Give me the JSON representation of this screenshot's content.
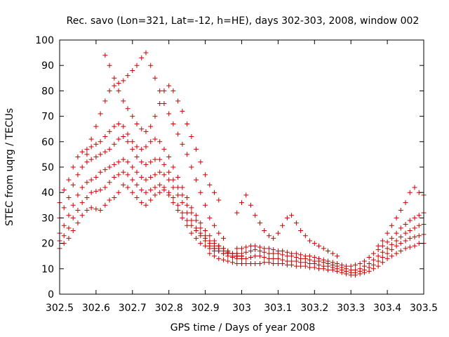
{
  "chart_data": {
    "type": "scatter",
    "title": "Rec. savo (Lon=321, Lat=-12, h=HE), days 302-303, 2008, window 002",
    "xlabel": "GPS time / Days of year 2008",
    "ylabel": "STEC from uqrg / TECUs",
    "xlim": [
      302.5,
      303.5
    ],
    "ylim": [
      0,
      100
    ],
    "grid": false,
    "marker": "+",
    "color": "#cc0000",
    "x_ticks": [
      302.5,
      302.6,
      302.7,
      302.8,
      302.9,
      303.0,
      303.1,
      303.2,
      303.3,
      303.4,
      303.5
    ],
    "x_tick_labels": [
      "302.5",
      "302.6",
      "302.7",
      "302.8",
      "302.9",
      "303",
      "303.1",
      "303.2",
      "303.3",
      "303.4",
      "303.5"
    ],
    "y_ticks": [
      0,
      10,
      20,
      30,
      40,
      50,
      60,
      70,
      80,
      90,
      100
    ],
    "y_tick_labels": [
      "0",
      "10",
      "20",
      "30",
      "40",
      "50",
      "60",
      "70",
      "80",
      "90",
      "100"
    ],
    "tracks": [
      {
        "x": [
          302.5,
          302.512,
          302.525,
          302.537,
          302.55,
          302.562,
          302.575,
          302.587,
          302.6,
          302.612,
          302.625,
          302.637,
          302.65,
          302.662,
          302.675,
          302.687,
          302.7,
          302.712,
          302.725,
          302.737,
          302.75,
          302.762,
          302.775,
          302.787,
          302.8,
          302.812,
          302.825,
          302.837,
          302.85,
          302.862,
          302.875,
          302.887,
          302.9,
          302.912,
          302.925,
          302.937,
          302.95,
          302.962,
          302.975,
          302.987,
          303.0
        ],
        "y": [
          18.0,
          20.0,
          22.0,
          25.0,
          28.0,
          31.0,
          33.0,
          34.0,
          33.5,
          33.0,
          35.0,
          37.0,
          38.0,
          40.0,
          43.0,
          42.0,
          40.0,
          38.0,
          36.0,
          35.0,
          37.0,
          39.0,
          40.0,
          41.0,
          39.0,
          36.0,
          33.0,
          30.0,
          27.0,
          24.0,
          22.0,
          20.0,
          19.0,
          18.0,
          17.0,
          17.0,
          16.0,
          16.0,
          15.0,
          15.0,
          14.0
        ]
      },
      {
        "x": [
          302.5,
          302.512,
          302.525,
          302.537,
          302.55,
          302.562,
          302.575,
          302.587,
          302.6,
          302.612,
          302.625,
          302.637,
          302.65,
          302.662,
          302.675,
          302.687,
          302.7,
          302.712,
          302.725,
          302.737,
          302.75,
          302.762,
          302.775,
          302.787,
          302.8,
          302.812,
          302.825,
          302.837,
          302.85,
          302.862,
          302.875,
          302.887,
          302.9,
          302.912,
          302.925,
          302.937,
          302.95,
          302.962,
          302.975,
          302.987,
          303.0
        ],
        "y": [
          21.0,
          23.0,
          26.0,
          30.0,
          33.0,
          36.0,
          38.0,
          40.0,
          40.5,
          41.0,
          42.0,
          44.0,
          46.0,
          47.0,
          48.0,
          47.0,
          45.0,
          43.0,
          41.0,
          40.0,
          41.0,
          42.0,
          43.0,
          42.0,
          40.0,
          38.0,
          35.0,
          32.0,
          29.0,
          27.0,
          25.0,
          23.0,
          21.0,
          19.0,
          18.0,
          17.0,
          17.0,
          16.0,
          16.0,
          15.0,
          15.0
        ]
      },
      {
        "x": [
          302.5,
          302.512,
          302.525,
          302.537,
          302.55,
          302.562,
          302.575,
          302.587,
          302.6,
          302.612,
          302.625,
          302.637,
          302.65,
          302.662,
          302.675,
          302.687,
          302.7,
          302.712,
          302.725,
          302.737,
          302.75,
          302.762,
          302.775,
          302.787,
          302.8,
          302.812,
          302.825,
          302.837,
          302.85,
          302.862,
          302.875,
          302.887,
          302.9,
          302.912,
          302.925,
          302.937,
          302.95,
          302.962,
          302.975,
          302.987,
          303.0
        ],
        "y": [
          24.0,
          27.0,
          31.0,
          35.0,
          39.0,
          42.0,
          44.0,
          45.0,
          46.0,
          48.0,
          49.0,
          50.0,
          51.0,
          52.0,
          53.0,
          52.0,
          50.0,
          48.0,
          46.0,
          45.0,
          46.0,
          47.0,
          48.0,
          47.0,
          45.0,
          42.0,
          39.0,
          36.0,
          32.0,
          29.0,
          26.0,
          24.0,
          22.0,
          20.0,
          19.0,
          18.0,
          17.0,
          16.0,
          16.0,
          15.0,
          15.0
        ]
      },
      {
        "x": [
          302.5,
          302.512,
          302.525,
          302.537,
          302.55,
          302.562,
          302.575,
          302.587,
          302.6,
          302.612,
          302.625,
          302.637,
          302.65,
          302.662,
          302.675,
          302.687,
          302.7,
          302.712,
          302.725,
          302.737,
          302.75,
          302.762,
          302.775,
          302.787,
          302.8,
          302.812,
          302.825,
          302.837,
          302.85,
          302.862,
          302.875,
          302.887,
          302.9,
          302.912,
          302.925,
          302.937,
          302.95,
          302.962,
          302.975,
          302.987,
          303.0
        ],
        "y": [
          30.0,
          34.0,
          38.0,
          43.0,
          47.0,
          50.0,
          52.0,
          53.0,
          54.0,
          55.0,
          56.0,
          57.0,
          59.0,
          61.0,
          62.0,
          60.0,
          57.0,
          54.0,
          52.0,
          51.0,
          52.0,
          53.0,
          53.0,
          51.0,
          48.0,
          45.0,
          42.0,
          39.0,
          35.0,
          32.0,
          29.0,
          26.0,
          23.0,
          21.0,
          20.0,
          19.0,
          18.0,
          17.0,
          16.0,
          15.0,
          15.0
        ]
      },
      {
        "x": [
          302.5,
          302.512,
          302.525,
          302.537,
          302.55,
          302.562,
          302.575,
          302.587,
          302.6,
          302.612,
          302.625,
          302.637,
          302.65,
          302.662,
          302.675,
          302.687,
          302.7,
          302.712,
          302.725,
          302.737,
          302.75,
          302.762,
          302.775,
          302.787,
          302.8,
          302.812,
          302.825,
          302.837,
          302.85,
          302.862,
          302.875,
          302.887,
          302.9,
          302.912,
          302.925,
          302.937,
          302.95,
          302.962,
          302.975,
          302.987,
          303.0
        ],
        "y": [
          36.0,
          41.0,
          45.0,
          50.0,
          54.0,
          56.0,
          57.0,
          58.0,
          59.0,
          60.0,
          62.0,
          64.0,
          66.0,
          67.0,
          66.0,
          63.0,
          60.0,
          58.0,
          57.0,
          58.0,
          60.0,
          61.0,
          60.0,
          57.0,
          54.0,
          50.0,
          46.0,
          42.0,
          38.0,
          34.0,
          31.0,
          28.0,
          25.0,
          23.0,
          21.0,
          19.0,
          18.0,
          17.0,
          16.0,
          16.0,
          15.0
        ]
      },
      {
        "x": [
          302.575,
          302.587,
          302.6,
          302.612,
          302.625,
          302.637,
          302.65,
          302.662,
          302.675,
          302.687,
          302.7,
          302.712,
          302.725,
          302.737,
          302.75,
          302.762,
          302.775,
          302.787,
          302.8,
          302.812,
          302.825,
          302.837,
          302.85,
          302.862,
          302.875,
          302.887,
          302.9,
          302.912,
          302.925,
          302.937,
          302.95
        ],
        "y": [
          55.0,
          61.0,
          66.0,
          71.0,
          76.0,
          80.0,
          82.0,
          83.0,
          84.0,
          86.0,
          88.0,
          90.0,
          93.0,
          95.0,
          90.0,
          85.0,
          80.0,
          75.0,
          71.0,
          67.0,
          63.0,
          59.0,
          55.0,
          50.0,
          45.0,
          40.0,
          35.0,
          30.0,
          27.0,
          24.0,
          22.0
        ]
      },
      {
        "x": [
          302.625,
          302.637,
          302.65,
          302.662,
          302.675,
          302.687,
          302.7,
          302.712,
          302.725,
          302.737,
          302.75,
          302.762,
          302.775,
          302.787,
          302.8,
          302.812,
          302.825,
          302.837,
          302.85,
          302.862,
          302.875,
          302.887,
          302.9,
          302.912,
          302.925,
          302.937
        ],
        "y": [
          94.0,
          90.0,
          85.0,
          80.0,
          76.0,
          73.0,
          70.0,
          67.0,
          65.0,
          64.0,
          66.0,
          70.0,
          75.0,
          80.0,
          82.0,
          80.0,
          76.0,
          72.0,
          67.0,
          62.0,
          57.0,
          52.0,
          47.0,
          43.0,
          40.0,
          37.0
        ]
      },
      {
        "x": [
          302.912,
          302.925,
          302.937,
          302.95,
          302.962,
          302.975,
          302.987,
          303.0,
          303.012,
          303.025,
          303.037,
          303.05,
          303.062,
          303.075,
          303.087,
          303.1,
          303.112,
          303.125,
          303.137,
          303.15,
          303.162,
          303.175,
          303.187,
          303.2,
          303.212,
          303.225,
          303.237,
          303.25,
          303.262,
          303.275,
          303.287,
          303.3,
          303.312,
          303.325,
          303.337,
          303.35,
          303.362,
          303.375,
          303.387,
          303.4,
          303.412,
          303.425,
          303.437,
          303.45,
          303.462,
          303.475,
          303.487,
          303.5
        ],
        "y": [
          16.0,
          15.0,
          14.0,
          13.5,
          13.0,
          12.5,
          12.0,
          12.0,
          12.0,
          12.0,
          12.0,
          12.0,
          12.5,
          12.5,
          12.0,
          12.0,
          12.0,
          11.5,
          11.5,
          11.0,
          11.0,
          11.0,
          10.5,
          10.5,
          10.0,
          10.0,
          9.5,
          9.5,
          9.0,
          8.5,
          8.0,
          7.5,
          7.5,
          8.0,
          8.5,
          9.0,
          10.0,
          11.0,
          12.5,
          14.0,
          15.0,
          16.0,
          17.0,
          18.0,
          18.5,
          19.0,
          20.0,
          20.0
        ]
      },
      {
        "x": [
          302.925,
          302.937,
          302.95,
          302.962,
          302.975,
          302.987,
          303.0,
          303.012,
          303.025,
          303.037,
          303.05,
          303.062,
          303.075,
          303.087,
          303.1,
          303.112,
          303.125,
          303.137,
          303.15,
          303.162,
          303.175,
          303.187,
          303.2,
          303.212,
          303.225,
          303.237,
          303.25,
          303.262,
          303.275,
          303.287,
          303.3,
          303.312,
          303.325,
          303.337,
          303.35,
          303.362,
          303.375,
          303.387,
          303.4,
          303.412,
          303.425,
          303.437,
          303.45,
          303.462,
          303.475,
          303.487,
          303.5
        ],
        "y": [
          18.0,
          17.0,
          16.0,
          15.0,
          14.5,
          14.0,
          14.0,
          14.0,
          14.5,
          15.0,
          15.0,
          14.5,
          14.0,
          14.0,
          14.0,
          13.5,
          13.0,
          13.0,
          13.0,
          12.5,
          12.5,
          12.0,
          12.0,
          11.5,
          11.0,
          11.0,
          10.5,
          10.0,
          9.5,
          9.0,
          8.5,
          8.5,
          9.0,
          9.5,
          10.5,
          11.5,
          13.0,
          14.5,
          16.0,
          17.5,
          19.0,
          20.0,
          21.0,
          22.0,
          22.5,
          23.0,
          23.5
        ]
      },
      {
        "x": [
          302.95,
          302.962,
          302.975,
          302.987,
          303.0,
          303.012,
          303.025,
          303.037,
          303.05,
          303.062,
          303.075,
          303.087,
          303.1,
          303.112,
          303.125,
          303.137,
          303.15,
          303.162,
          303.175,
          303.187,
          303.2,
          303.212,
          303.225,
          303.237,
          303.25,
          303.262,
          303.275,
          303.287,
          303.3,
          303.312,
          303.325,
          303.337,
          303.35,
          303.362,
          303.375,
          303.387,
          303.4,
          303.412,
          303.425,
          303.437,
          303.45,
          303.462,
          303.475,
          303.487,
          303.5
        ],
        "y": [
          17.0,
          16.5,
          16.0,
          16.0,
          16.0,
          16.5,
          17.0,
          17.5,
          17.0,
          16.5,
          16.0,
          16.0,
          16.0,
          15.5,
          15.0,
          15.0,
          14.5,
          14.0,
          14.0,
          13.5,
          13.0,
          13.0,
          12.5,
          12.0,
          11.5,
          11.0,
          10.5,
          10.0,
          9.5,
          9.5,
          10.0,
          11.0,
          12.0,
          13.5,
          15.0,
          16.5,
          18.0,
          19.5,
          21.0,
          22.5,
          24.0,
          25.0,
          26.0,
          27.0,
          27.5
        ]
      },
      {
        "x": [
          302.987,
          303.0,
          303.012,
          303.025,
          303.037,
          303.05,
          303.062,
          303.075,
          303.087,
          303.1,
          303.112,
          303.125,
          303.137,
          303.15,
          303.162,
          303.175,
          303.187,
          303.2,
          303.212,
          303.225,
          303.237,
          303.25,
          303.262,
          303.275,
          303.287,
          303.3,
          303.312,
          303.325,
          303.337,
          303.35,
          303.362,
          303.375,
          303.387,
          303.4,
          303.412,
          303.425,
          303.437,
          303.45,
          303.462,
          303.475,
          303.487,
          303.5
        ],
        "y": [
          18.0,
          18.0,
          18.5,
          19.0,
          19.0,
          18.5,
          18.0,
          18.0,
          17.5,
          17.0,
          17.0,
          16.5,
          16.0,
          16.0,
          15.5,
          15.0,
          15.0,
          14.5,
          14.0,
          13.5,
          13.0,
          12.5,
          12.0,
          11.5,
          11.0,
          11.0,
          11.5,
          12.0,
          13.0,
          14.5,
          16.0,
          17.5,
          19.0,
          20.5,
          22.0,
          24.0,
          26.0,
          27.5,
          29.0,
          30.0,
          31.0,
          32.0
        ]
      },
      {
        "x": [
          302.987,
          303.0,
          303.012,
          303.025,
          303.037,
          303.05,
          303.062,
          303.075,
          303.087,
          303.1,
          303.112,
          303.125,
          303.137,
          303.15,
          303.162,
          303.175,
          303.187,
          303.2,
          303.212,
          303.225,
          303.237,
          303.25,
          303.262
        ],
        "y": [
          32.0,
          36.0,
          39.0,
          35.0,
          31.0,
          28.0,
          25.0,
          23.0,
          22.0,
          24.0,
          27.0,
          30.0,
          31.0,
          28.0,
          25.0,
          23.0,
          21.0,
          20.0,
          19.0,
          18.0,
          17.0,
          16.0,
          15.0
        ]
      },
      {
        "x": [
          303.375,
          303.387,
          303.4,
          303.412,
          303.425,
          303.437,
          303.45,
          303.462,
          303.475,
          303.487,
          303.5
        ],
        "y": [
          19.0,
          21.0,
          24.0,
          27.0,
          30.0,
          33.0,
          36.0,
          40.0,
          42.0,
          40.0,
          39.0
        ]
      }
    ]
  }
}
